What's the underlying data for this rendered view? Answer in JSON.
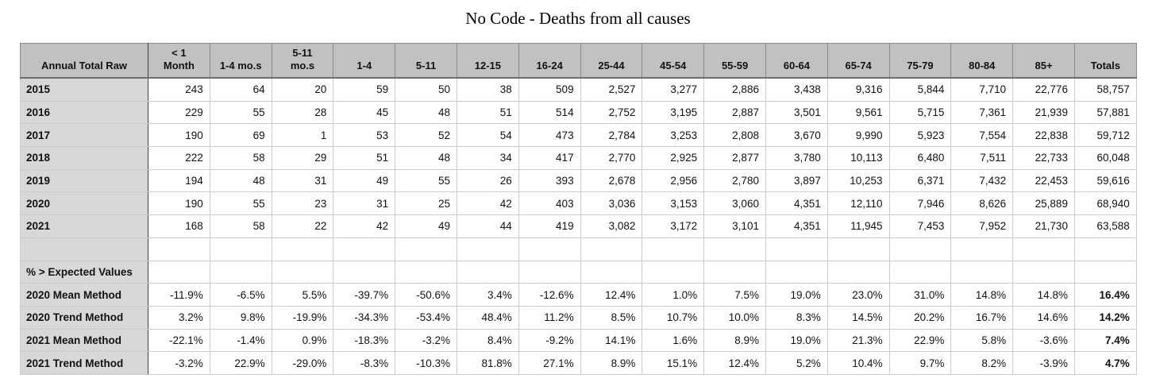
{
  "title": "No Code - Deaths from all causes",
  "colors": {
    "page_bg": "#ffffff",
    "header_bg": "#c1c1c1",
    "label_col_bg": "#d8d8d8",
    "grid_light": "#cbcbcb",
    "grid_dark": "#3f3f3f",
    "outer_border": "#6f6f6f",
    "text": "#111111"
  },
  "table": {
    "header": [
      "Annual Total Raw",
      "< 1\nMonth",
      "1-4 mo.s",
      "5-11\nmo.s",
      "1-4",
      "5-11",
      "12-15",
      "16-24",
      "25-44",
      "45-54",
      "55-59",
      "60-64",
      "65-74",
      "75-79",
      "80-84",
      "85+",
      "Totals"
    ],
    "raw_rows": [
      {
        "label": "2015",
        "values": [
          "243",
          "64",
          "20",
          "59",
          "50",
          "38",
          "509",
          "2,527",
          "3,277",
          "2,886",
          "3,438",
          "9,316",
          "5,844",
          "7,710",
          "22,776",
          "58,757"
        ]
      },
      {
        "label": "2016",
        "values": [
          "229",
          "55",
          "28",
          "45",
          "48",
          "51",
          "514",
          "2,752",
          "3,195",
          "2,887",
          "3,501",
          "9,561",
          "5,715",
          "7,361",
          "21,939",
          "57,881"
        ]
      },
      {
        "label": "2017",
        "values": [
          "190",
          "69",
          "1",
          "53",
          "52",
          "54",
          "473",
          "2,784",
          "3,253",
          "2,808",
          "3,670",
          "9,990",
          "5,923",
          "7,554",
          "22,838",
          "59,712"
        ]
      },
      {
        "label": "2018",
        "values": [
          "222",
          "58",
          "29",
          "51",
          "48",
          "34",
          "417",
          "2,770",
          "2,925",
          "2,877",
          "3,780",
          "10,113",
          "6,480",
          "7,511",
          "22,733",
          "60,048"
        ]
      },
      {
        "label": "2019",
        "values": [
          "194",
          "48",
          "31",
          "49",
          "55",
          "26",
          "393",
          "2,678",
          "2,956",
          "2,780",
          "3,897",
          "10,253",
          "6,371",
          "7,432",
          "22,453",
          "59,616"
        ]
      },
      {
        "label": "2020",
        "values": [
          "190",
          "55",
          "23",
          "31",
          "25",
          "42",
          "403",
          "3,036",
          "3,153",
          "3,060",
          "4,351",
          "12,110",
          "7,946",
          "8,626",
          "25,889",
          "68,940"
        ]
      },
      {
        "label": "2021",
        "values": [
          "168",
          "58",
          "22",
          "42",
          "49",
          "44",
          "419",
          "3,082",
          "3,172",
          "3,101",
          "4,351",
          "11,945",
          "7,453",
          "7,952",
          "21,730",
          "63,588"
        ]
      }
    ],
    "spacer_row": {
      "label": ""
    },
    "section_row": {
      "label": "% > Expected Values"
    },
    "pct_rows": [
      {
        "label": "2020 Mean Method",
        "values": [
          "-11.9%",
          "-6.5%",
          "5.5%",
          "-39.7%",
          "-50.6%",
          "3.4%",
          "-12.6%",
          "12.4%",
          "1.0%",
          "7.5%",
          "19.0%",
          "23.0%",
          "31.0%",
          "14.8%",
          "14.8%",
          "16.4%"
        ]
      },
      {
        "label": "2020 Trend Method",
        "values": [
          "3.2%",
          "9.8%",
          "-19.9%",
          "-34.3%",
          "-53.4%",
          "48.4%",
          "11.2%",
          "8.5%",
          "10.7%",
          "10.0%",
          "8.3%",
          "14.5%",
          "20.2%",
          "16.7%",
          "14.6%",
          "14.2%"
        ]
      },
      {
        "label": "2021 Mean Method",
        "values": [
          "-22.1%",
          "-1.4%",
          "0.9%",
          "-18.3%",
          "-3.2%",
          "8.4%",
          "-9.2%",
          "14.1%",
          "1.6%",
          "8.9%",
          "19.0%",
          "21.3%",
          "22.9%",
          "5.8%",
          "-3.6%",
          "7.4%"
        ]
      },
      {
        "label": "2021 Trend Method",
        "values": [
          "-3.2%",
          "22.9%",
          "-29.0%",
          "-8.3%",
          "-10.3%",
          "81.8%",
          "27.1%",
          "8.9%",
          "15.1%",
          "12.4%",
          "5.2%",
          "10.4%",
          "9.7%",
          "8.2%",
          "-3.9%",
          "4.7%"
        ]
      }
    ]
  }
}
